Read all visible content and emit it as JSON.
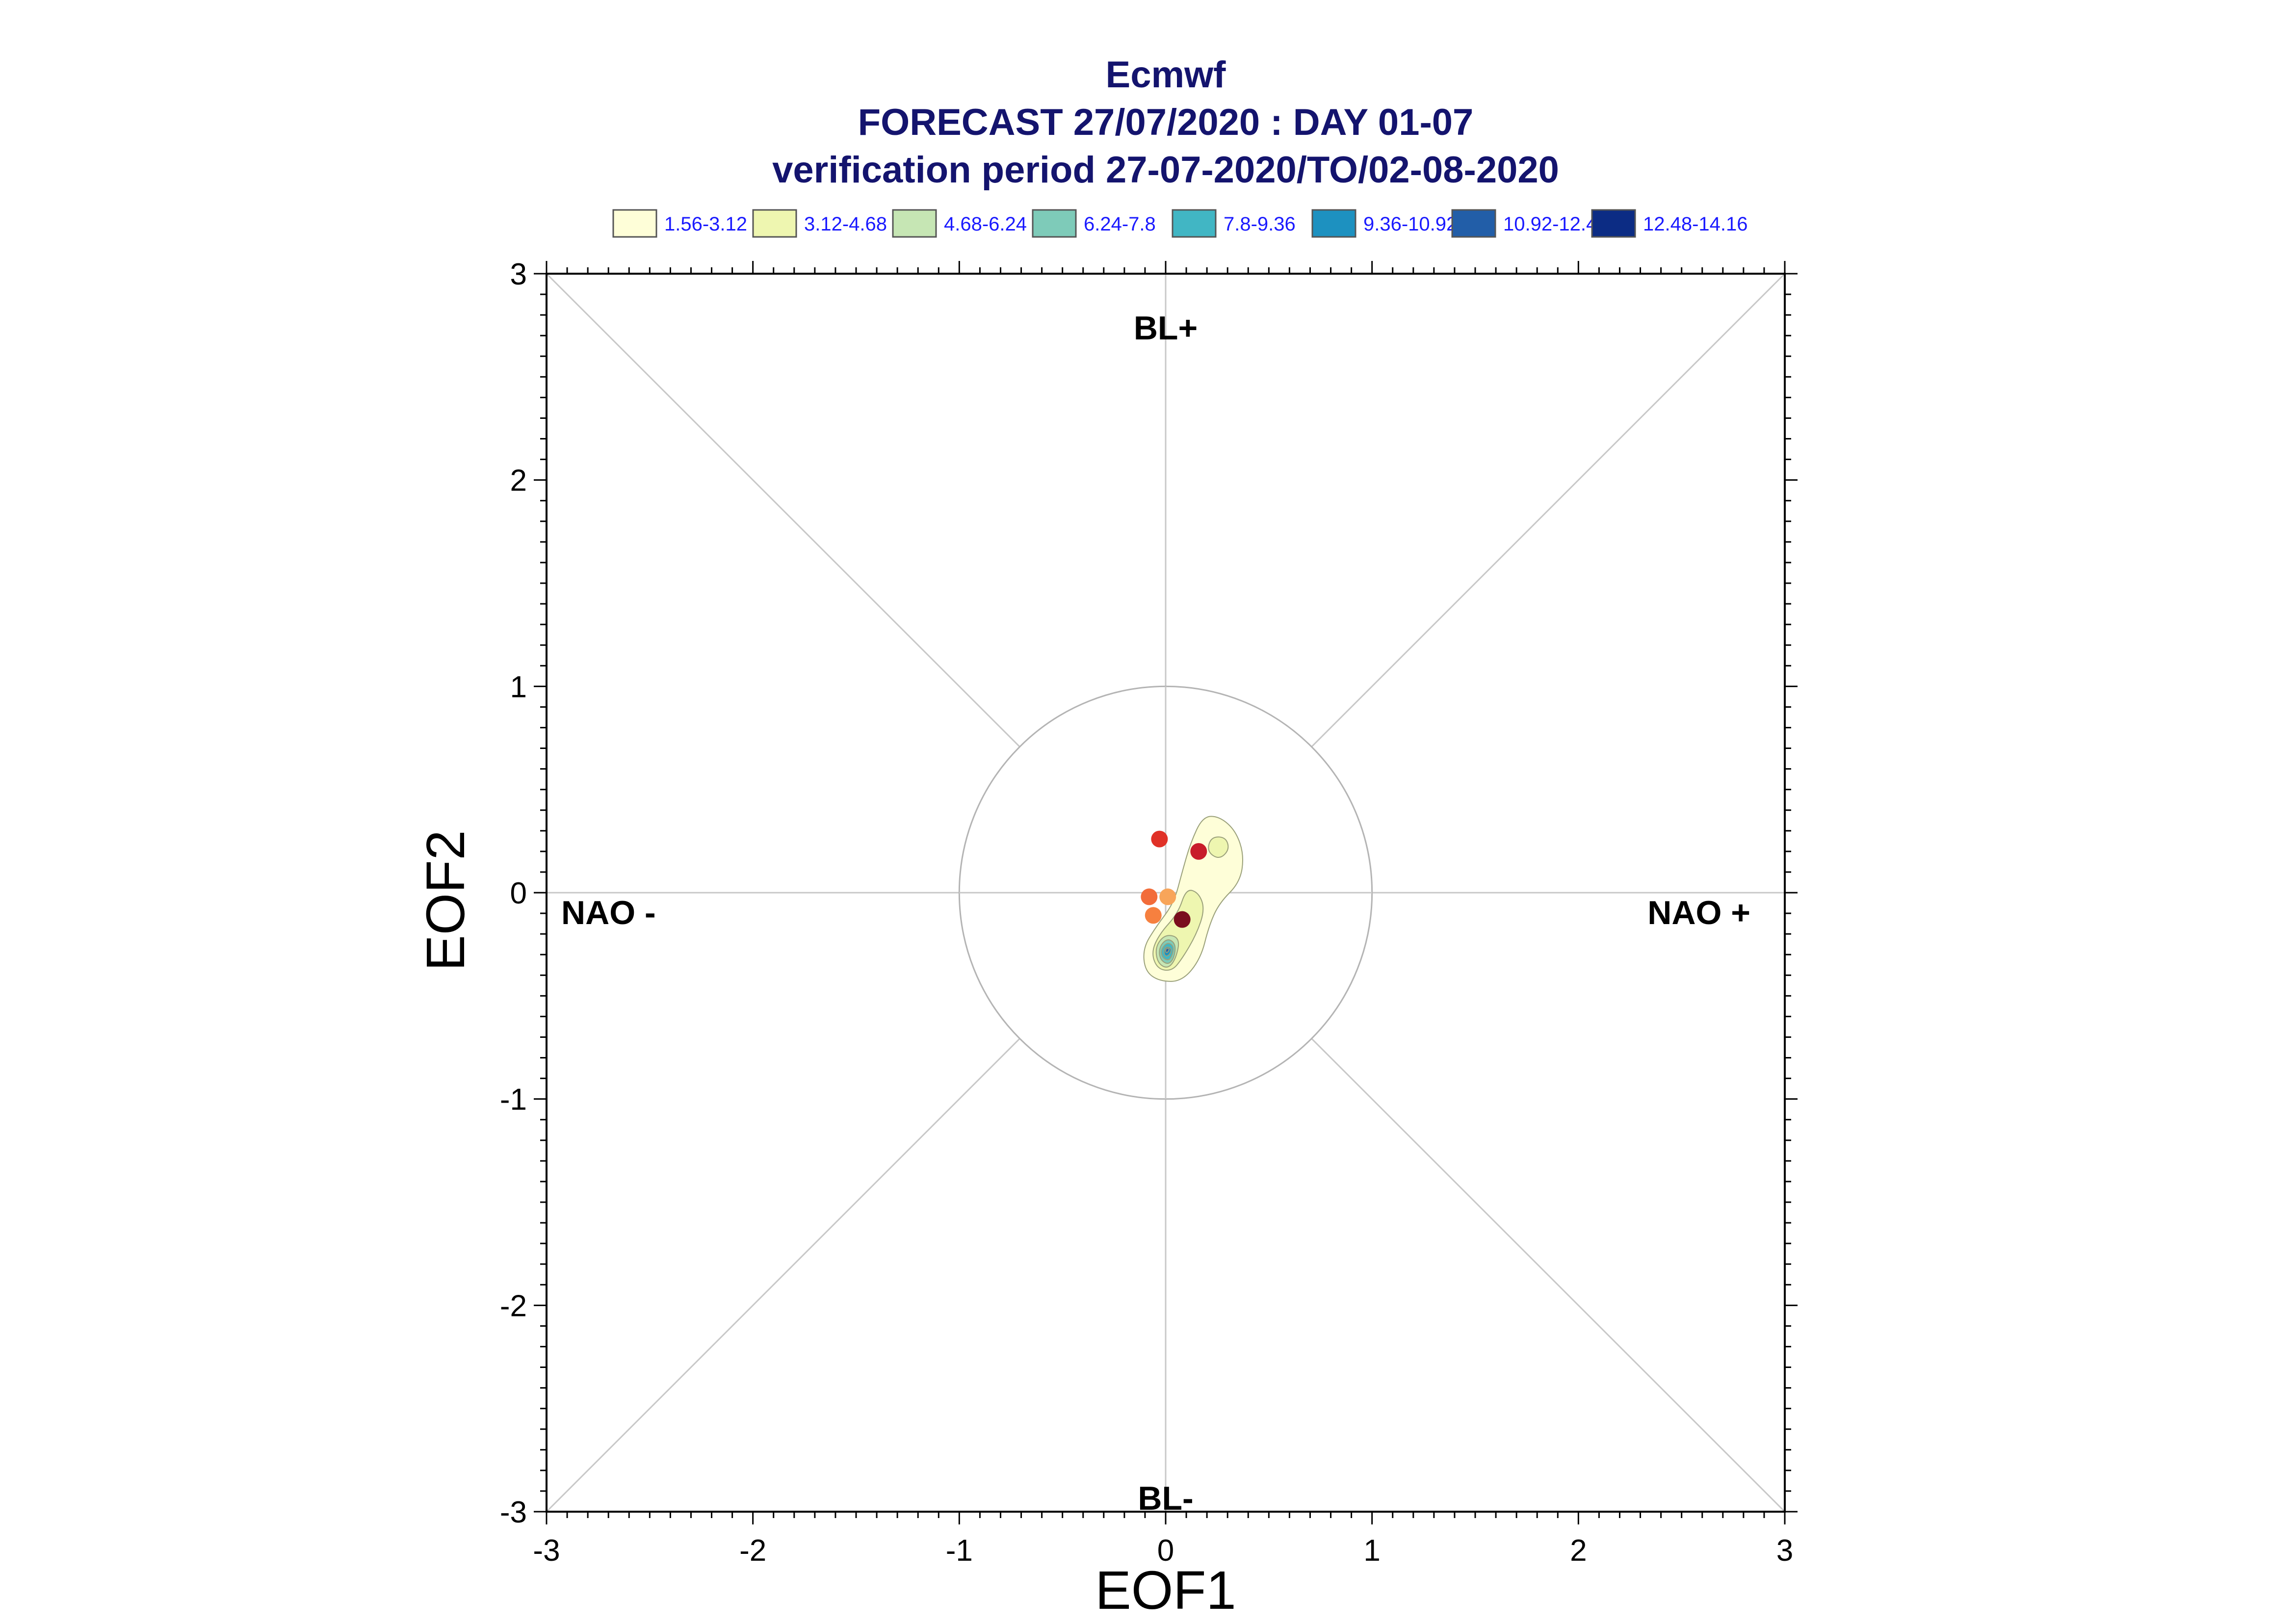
{
  "chart_data": {
    "type": "scatter",
    "title_lines": [
      "Ecmwf",
      "FORECAST 27/07/2020 : DAY 01-07",
      "verification period 27-07-2020/TO/02-08-2020"
    ],
    "xlabel": "EOF1",
    "ylabel": "EOF2",
    "xlim": [
      -3,
      3
    ],
    "ylim": [
      -3,
      3
    ],
    "xticks": [
      "-3",
      "-2",
      "-1",
      "0",
      "1",
      "2",
      "3"
    ],
    "yticks": [
      "-3",
      "-2",
      "-1",
      "0",
      "1",
      "2",
      "3"
    ],
    "grid": false,
    "reference_circle_radius": 1,
    "regime_labels": {
      "top": "BL+",
      "bottom": "BL-",
      "left": "NAO -",
      "right": "NAO +"
    },
    "legend": {
      "placement": "top",
      "entries": [
        {
          "label": "1.56-3.12",
          "color": "#fefed8"
        },
        {
          "label": "3.12-4.68",
          "color": "#eef6b0"
        },
        {
          "label": "4.68-6.24",
          "color": "#c6e6b4"
        },
        {
          "label": "6.24-7.8",
          "color": "#7ecbb9"
        },
        {
          "label": "7.8-9.36",
          "color": "#41b6c4"
        },
        {
          "label": "9.36-10.92",
          "color": "#1d91c0"
        },
        {
          "label": "10.92-12.48",
          "color": "#225ea8"
        },
        {
          "label": "12.48-14.16",
          "color": "#0c2c84"
        }
      ]
    },
    "points": [
      {
        "x": -0.03,
        "y": 0.26,
        "color": "#e03127"
      },
      {
        "x": 0.16,
        "y": 0.2,
        "color": "#c81c2a"
      },
      {
        "x": -0.08,
        "y": -0.02,
        "color": "#f26c3a"
      },
      {
        "x": 0.01,
        "y": -0.02,
        "color": "#f8a55a"
      },
      {
        "x": -0.06,
        "y": -0.11,
        "color": "#f6803f"
      },
      {
        "x": 0.08,
        "y": -0.13,
        "color": "#7a0e1e"
      }
    ],
    "density_contours": [
      {
        "level": 0,
        "color": "#fefed8",
        "points": [
          [
            0.18,
            0.37
          ],
          [
            0.26,
            0.37
          ],
          [
            0.34,
            0.3
          ],
          [
            0.38,
            0.18
          ],
          [
            0.36,
            0.05
          ],
          [
            0.26,
            -0.05
          ],
          [
            0.21,
            -0.16
          ],
          [
            0.17,
            -0.32
          ],
          [
            0.08,
            -0.43
          ],
          [
            -0.03,
            -0.43
          ],
          [
            -0.1,
            -0.38
          ],
          [
            -0.11,
            -0.27
          ],
          [
            -0.05,
            -0.17
          ],
          [
            0.04,
            -0.05
          ],
          [
            0.08,
            0.1
          ],
          [
            0.12,
            0.24
          ]
        ]
      },
      {
        "level": 1,
        "color": "#eef6b0",
        "points": [
          [
            0.22,
            0.27
          ],
          [
            0.29,
            0.27
          ],
          [
            0.31,
            0.21
          ],
          [
            0.26,
            0.16
          ],
          [
            0.2,
            0.2
          ]
        ]
      },
      {
        "level": 1,
        "color": "#eef6b0",
        "points": [
          [
            0.16,
            0.0
          ],
          [
            0.19,
            -0.08
          ],
          [
            0.15,
            -0.2
          ],
          [
            0.08,
            -0.32
          ],
          [
            0.03,
            -0.38
          ],
          [
            -0.04,
            -0.37
          ],
          [
            -0.07,
            -0.29
          ],
          [
            -0.03,
            -0.2
          ],
          [
            0.06,
            -0.1
          ],
          [
            0.1,
            0.02
          ]
        ]
      },
      {
        "level": 2,
        "color": "#c6e6b4",
        "points": [
          [
            0.07,
            -0.22
          ],
          [
            0.05,
            -0.32
          ],
          [
            0.01,
            -0.37
          ],
          [
            -0.04,
            -0.34
          ],
          [
            -0.05,
            -0.26
          ],
          [
            0.0,
            -0.2
          ]
        ]
      },
      {
        "level": 3,
        "color": "#7ecbb9",
        "points": [
          [
            0.05,
            -0.25
          ],
          [
            0.04,
            -0.32
          ],
          [
            0.01,
            -0.35
          ],
          [
            -0.03,
            -0.32
          ],
          [
            -0.03,
            -0.26
          ],
          [
            0.01,
            -0.22
          ]
        ]
      },
      {
        "level": 4,
        "color": "#41b6c4",
        "points": [
          [
            0.04,
            -0.26
          ],
          [
            0.03,
            -0.31
          ],
          [
            0.01,
            -0.33
          ],
          [
            -0.02,
            -0.31
          ],
          [
            -0.02,
            -0.27
          ],
          [
            0.01,
            -0.24
          ]
        ]
      },
      {
        "level": 5,
        "color": "#1d91c0",
        "points": [
          [
            0.03,
            -0.27
          ],
          [
            0.02,
            -0.3
          ],
          [
            0.0,
            -0.31
          ],
          [
            -0.01,
            -0.29
          ],
          [
            0.0,
            -0.26
          ]
        ]
      },
      {
        "level": 6,
        "color": "#225ea8",
        "points": [
          [
            0.02,
            -0.27
          ],
          [
            0.01,
            -0.29
          ],
          [
            0.0,
            -0.29
          ],
          [
            0.0,
            -0.27
          ]
        ]
      }
    ]
  }
}
